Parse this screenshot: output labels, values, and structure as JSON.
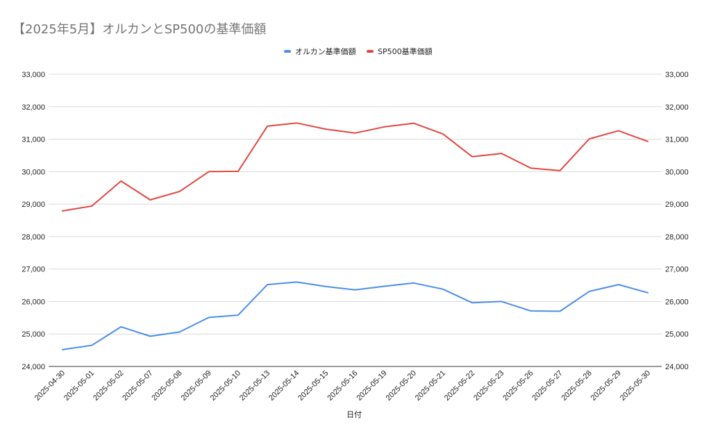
{
  "chart_data": {
    "type": "line",
    "title": "【2025年5月】オルカンとSP500の基準価額",
    "xlabel": "日付",
    "ylabel": "",
    "ylim": [
      24000,
      33000
    ],
    "yticks": [
      "24,000",
      "25,000",
      "26,000",
      "27,000",
      "28,000",
      "29,000",
      "30,000",
      "31,000",
      "32,000",
      "33,000"
    ],
    "y_axis_both_sides": true,
    "grid": true,
    "legend_position": "top",
    "categories": [
      "2025-04-30",
      "2025-05-01",
      "2025-05-02",
      "2025-05-07",
      "2025-05-08",
      "2025-05-09",
      "2025-05-10",
      "2025-05-13",
      "2025-05-14",
      "2025-05-15",
      "2025-05-16",
      "2025-05-19",
      "2025-05-20",
      "2025-05-21",
      "2025-05-22",
      "2025-05-23",
      "2025-05-26",
      "2025-05-27",
      "2025-05-28",
      "2025-05-29",
      "2025-05-30"
    ],
    "series": [
      {
        "name": "オルカン基準価額",
        "color": "#4a8ee8",
        "values": [
          24520,
          24650,
          25220,
          24930,
          25060,
          25510,
          25580,
          26520,
          26600,
          26460,
          26360,
          26470,
          26570,
          26380,
          25960,
          26000,
          25710,
          25700,
          26310,
          26520,
          26270
        ]
      },
      {
        "name": "SP500基準価額",
        "color": "#e2463f",
        "values": [
          28790,
          28940,
          29710,
          29130,
          29390,
          30000,
          30010,
          31400,
          31500,
          31310,
          31190,
          31380,
          31490,
          31160,
          30460,
          30560,
          30110,
          30030,
          31010,
          31260,
          30930
        ]
      }
    ]
  }
}
